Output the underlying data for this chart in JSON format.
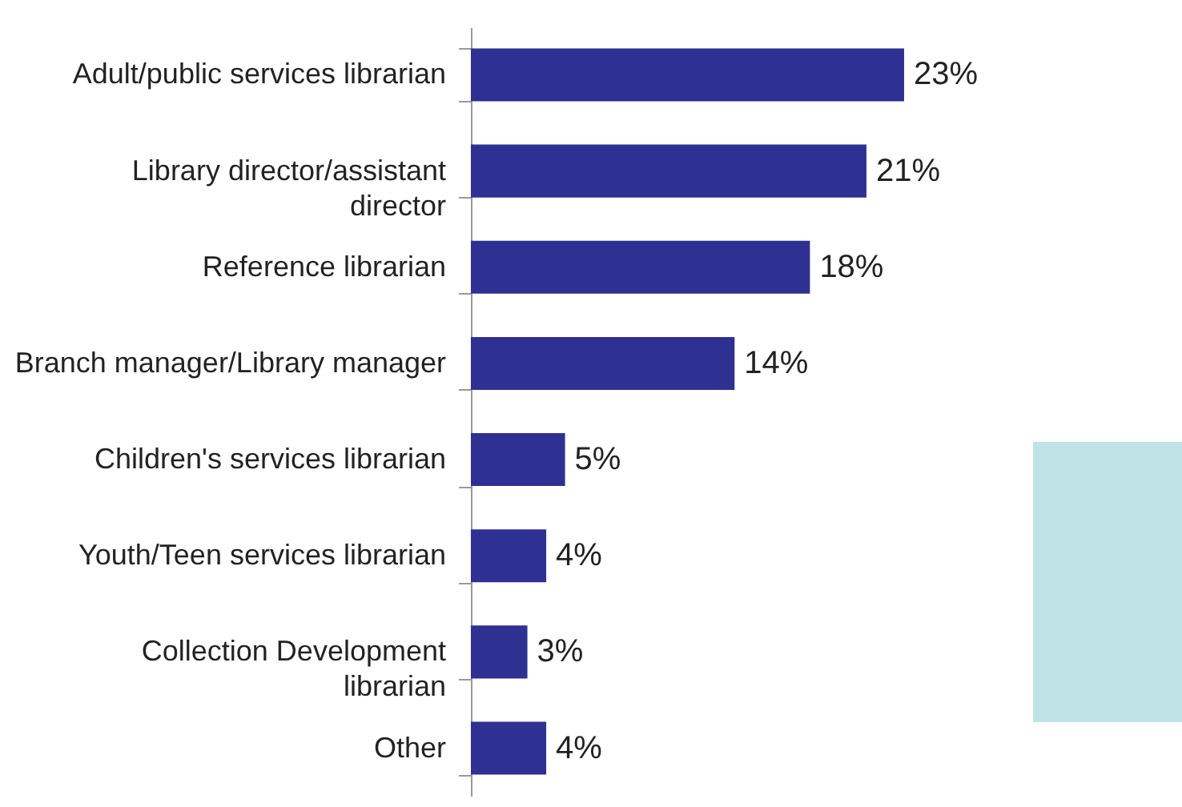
{
  "chart_data": {
    "type": "bar",
    "orientation": "horizontal",
    "categories": [
      "Adult/public services librarian",
      "Library director/assistant director",
      "Reference librarian",
      "Branch manager/Library manager",
      "Children's services librarian",
      "Youth/Teen services librarian",
      "Collection Development librarian",
      "Other"
    ],
    "values": [
      23,
      21,
      18,
      14,
      5,
      4,
      3,
      4
    ],
    "value_labels": [
      "23%",
      "21%",
      "18%",
      "14%",
      "5%",
      "4%",
      "3%",
      "4%"
    ],
    "color": "#2e3092"
  }
}
